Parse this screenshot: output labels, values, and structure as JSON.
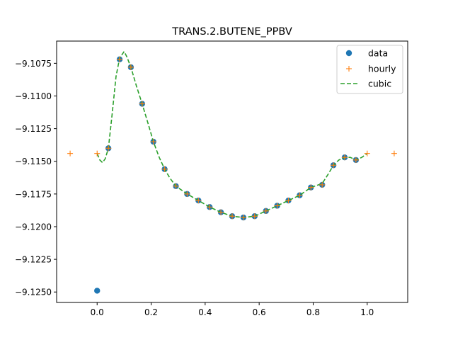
{
  "chart_data": {
    "type": "line",
    "title": "TRANS.2.BUTENE_PPBV",
    "xlabel": "",
    "ylabel": "",
    "xlim": [
      -0.15,
      1.15
    ],
    "ylim": [
      -9.1258,
      -9.1058
    ],
    "x_ticks": [
      0.0,
      0.2,
      0.4,
      0.6,
      0.8,
      1.0
    ],
    "x_tick_labels": [
      "0.0",
      "0.2",
      "0.4",
      "0.6",
      "0.8",
      "1.0"
    ],
    "y_ticks": [
      -9.125,
      -9.1225,
      -9.12,
      -9.1175,
      -9.115,
      -9.1125,
      -9.11,
      -9.1075
    ],
    "y_tick_labels": [
      "−9.1250",
      "−9.1225",
      "−9.1200",
      "−9.1175",
      "−9.1150",
      "−9.1125",
      "−9.1100",
      "−9.1075"
    ],
    "grid": false,
    "legend_position": "upper right",
    "series": [
      {
        "name": "data",
        "style": "markers",
        "marker": "circle",
        "color": "#1f77b4",
        "x": [
          0.0,
          0.0417,
          0.0833,
          0.125,
          0.1667,
          0.2083,
          0.25,
          0.2917,
          0.3333,
          0.375,
          0.4167,
          0.4583,
          0.5,
          0.5417,
          0.5833,
          0.625,
          0.6667,
          0.7083,
          0.75,
          0.7917,
          0.8333,
          0.875,
          0.9167,
          0.9583
        ],
        "y": [
          -9.1249,
          -9.114,
          -9.1072,
          -9.1078,
          -9.1106,
          -9.1135,
          -9.1156,
          -9.1169,
          -9.1175,
          -9.118,
          -9.1185,
          -9.1189,
          -9.1192,
          -9.1193,
          -9.1192,
          -9.1188,
          -9.1184,
          -9.118,
          -9.1176,
          -9.117,
          -9.1168,
          -9.1153,
          -9.1147,
          -9.1149
        ]
      },
      {
        "name": "hourly",
        "style": "markers",
        "marker": "plus",
        "color": "#ff7f0e",
        "x": [
          -0.1,
          0.0,
          0.0417,
          0.0833,
          0.125,
          0.1667,
          0.2083,
          0.25,
          0.2917,
          0.3333,
          0.375,
          0.4167,
          0.4583,
          0.5,
          0.5417,
          0.5833,
          0.625,
          0.6667,
          0.7083,
          0.75,
          0.7917,
          0.8333,
          0.875,
          0.9167,
          0.9583,
          1.0,
          1.1
        ],
        "y": [
          -9.1144,
          -9.1144,
          -9.114,
          -9.1072,
          -9.1078,
          -9.1106,
          -9.1135,
          -9.1156,
          -9.1169,
          -9.1175,
          -9.118,
          -9.1185,
          -9.1189,
          -9.1192,
          -9.1193,
          -9.1192,
          -9.1188,
          -9.1184,
          -9.118,
          -9.1176,
          -9.117,
          -9.1168,
          -9.1153,
          -9.1147,
          -9.1149,
          -9.1144,
          -9.1144
        ]
      },
      {
        "name": "cubic",
        "style": "dashed-line",
        "color": "#2ca02c",
        "x": [
          0.0,
          0.01,
          0.02,
          0.03,
          0.0417,
          0.055,
          0.07,
          0.0833,
          0.1,
          0.11,
          0.125,
          0.145,
          0.1667,
          0.19,
          0.2083,
          0.23,
          0.25,
          0.27,
          0.2917,
          0.3333,
          0.375,
          0.4167,
          0.4583,
          0.5,
          0.5417,
          0.5833,
          0.625,
          0.6667,
          0.7083,
          0.75,
          0.7917,
          0.8333,
          0.855,
          0.875,
          0.895,
          0.9167,
          0.9375,
          0.9583,
          0.98,
          1.0
        ],
        "y": [
          -9.1144,
          -9.1149,
          -9.1151,
          -9.1148,
          -9.114,
          -9.1115,
          -9.1085,
          -9.1071,
          -9.1066,
          -9.107,
          -9.1078,
          -9.1092,
          -9.1106,
          -9.1122,
          -9.1135,
          -9.1147,
          -9.1156,
          -9.1163,
          -9.1169,
          -9.1175,
          -9.118,
          -9.1185,
          -9.1189,
          -9.1192,
          -9.1193,
          -9.1192,
          -9.1188,
          -9.1184,
          -9.118,
          -9.1176,
          -9.117,
          -9.1167,
          -9.116,
          -9.1153,
          -9.1149,
          -9.1147,
          -9.1147,
          -9.1149,
          -9.1147,
          -9.1144
        ]
      }
    ]
  }
}
